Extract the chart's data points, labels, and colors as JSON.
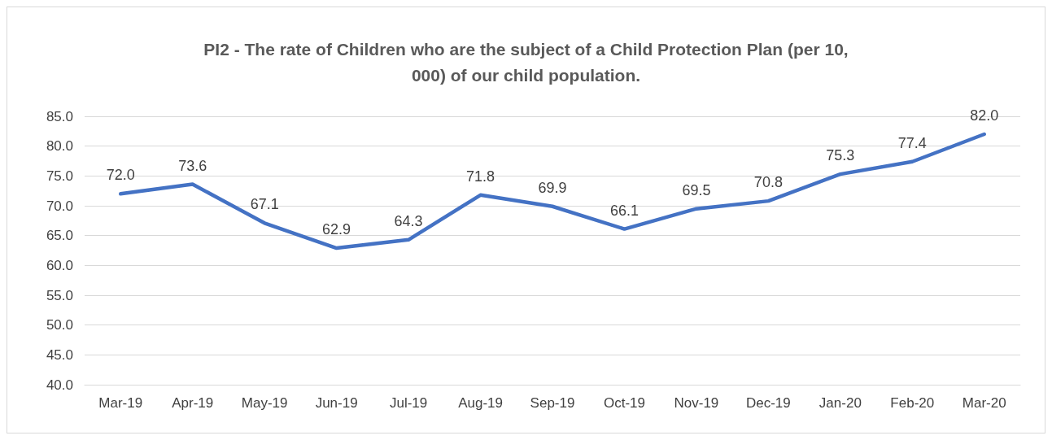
{
  "chart_data": {
    "type": "line",
    "title": "PI2 - The rate of Children who are the subject of a Child Protection Plan (per 10,000) of our child population.",
    "categories": [
      "Mar-19",
      "Apr-19",
      "May-19",
      "Jun-19",
      "Jul-19",
      "Aug-19",
      "Sep-19",
      "Oct-19",
      "Nov-19",
      "Dec-19",
      "Jan-20",
      "Feb-20",
      "Mar-20"
    ],
    "series": [
      {
        "color": "#4472c4",
        "values": [
          72.0,
          73.6,
          67.1,
          62.9,
          64.3,
          71.8,
          69.9,
          66.1,
          69.5,
          70.8,
          75.3,
          77.4,
          82.0
        ],
        "value_labels": [
          "72.0",
          "73.6",
          "67.1",
          "62.9",
          "64.3",
          "71.8",
          "69.9",
          "66.1",
          "69.5",
          "70.8",
          "75.3",
          "77.4",
          "82.0"
        ]
      }
    ],
    "ylim": [
      40,
      85
    ],
    "yticks": [
      {
        "value": 40,
        "label": "40.0"
      },
      {
        "value": 45,
        "label": "45.0"
      },
      {
        "value": 50,
        "label": "50.0"
      },
      {
        "value": 55,
        "label": "55.0"
      },
      {
        "value": 60,
        "label": "60.0"
      },
      {
        "value": 65,
        "label": "65.0"
      },
      {
        "value": 70,
        "label": "70.0"
      },
      {
        "value": 75,
        "label": "75.0"
      },
      {
        "value": 80,
        "label": "80.0"
      },
      {
        "value": 85,
        "label": "85.0"
      }
    ],
    "grid": "y",
    "marker": "none",
    "line_style": "solid"
  }
}
